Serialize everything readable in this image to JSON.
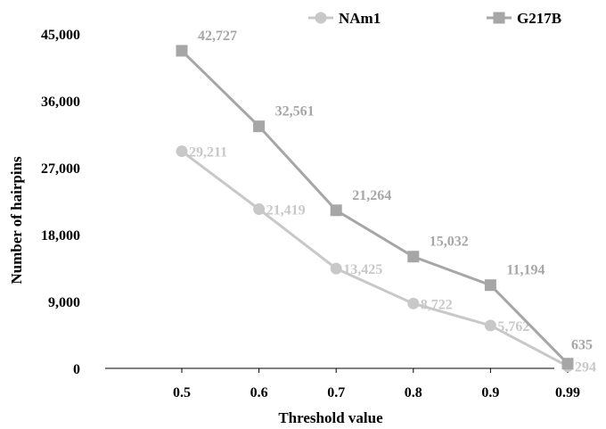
{
  "chart_data": {
    "type": "line",
    "categories": [
      "0.5",
      "0.6",
      "0.7",
      "0.8",
      "0.9",
      "0.99"
    ],
    "series": [
      {
        "name": "NAm1",
        "marker": "circle",
        "color": "#c8c8c8",
        "values": [
          29211,
          21419,
          13425,
          8722,
          5762,
          294
        ],
        "labels": [
          "29,211",
          "21,419",
          "13,425",
          "8,722",
          "5,762",
          "294"
        ]
      },
      {
        "name": "G217B",
        "marker": "square",
        "color": "#a6a6a6",
        "values": [
          42727,
          32561,
          21264,
          15032,
          11194,
          635
        ],
        "labels": [
          "42,727",
          "32,561",
          "21,264",
          "15,032",
          "11,194",
          "635"
        ]
      }
    ],
    "title": "",
    "xlabel": "Threshold value",
    "ylabel": "Number of hairpins",
    "ylim": [
      0,
      45000
    ],
    "yticks": [
      0,
      9000,
      18000,
      27000,
      36000,
      45000
    ],
    "ytick_labels": [
      "0",
      "9,000",
      "18,000",
      "27,000",
      "36,000",
      "45,000"
    ],
    "grid": false,
    "legend": "top-right"
  }
}
